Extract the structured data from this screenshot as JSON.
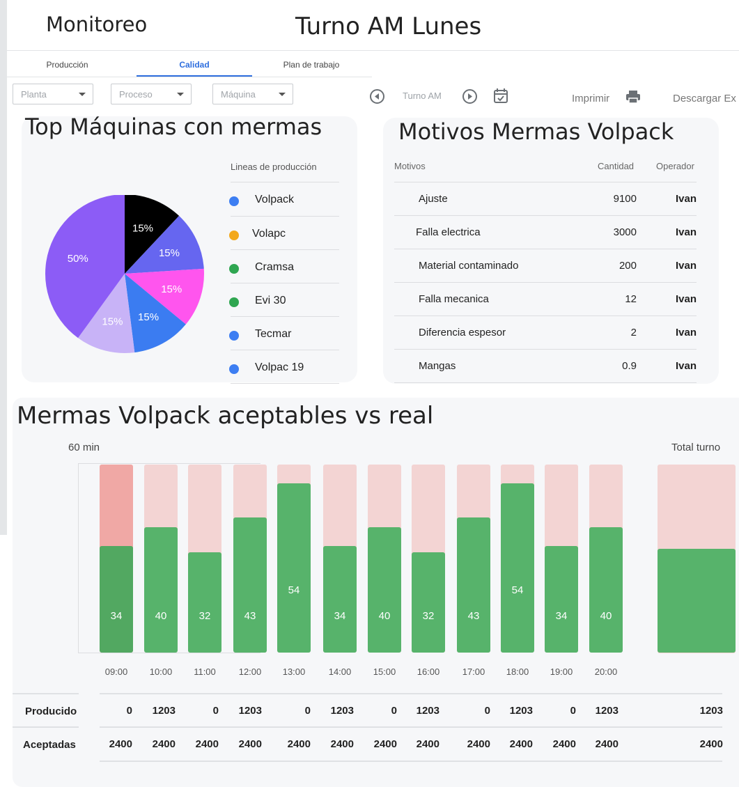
{
  "header": {
    "app_title": "Monitoreo",
    "shift_title": "Turno AM Lunes"
  },
  "tabs": [
    {
      "label": "Producción",
      "active": false
    },
    {
      "label": "Calidad",
      "active": true
    },
    {
      "label": "Plan de trabajo",
      "active": false
    }
  ],
  "filters": {
    "planta": "Planta",
    "proceso": "Proceso",
    "maquina": "Máquina"
  },
  "shift_nav": {
    "label": "Turno AM",
    "prev_icon": "circle-left-icon",
    "next_icon": "circle-right-icon",
    "calendar_icon": "calendar-check-icon"
  },
  "actions": {
    "print_label": "Imprimir",
    "print_icon": "printer-icon",
    "download_label": "Descargar Ex"
  },
  "top_machines": {
    "title": "Top Máquinas con mermas",
    "legend_title": "Lineas de producción",
    "legend": [
      {
        "label": "Volpack",
        "color": "#3d7ef2"
      },
      {
        "label": "Volapc",
        "color": "#f3a81b"
      },
      {
        "label": "Cramsa",
        "color": "#2fa651"
      },
      {
        "label": "Evi 30",
        "color": "#2fa651"
      },
      {
        "label": "Tecmar",
        "color": "#3d7ef2"
      },
      {
        "label": "Volpac 19",
        "color": "#3d7ef2"
      }
    ]
  },
  "reasons": {
    "title": "Motivos Mermas Volpack",
    "col_motivos": "Motivos",
    "col_cantidad": "Cantidad",
    "col_operador": "Operador",
    "rows": [
      {
        "motivo": "Ajuste",
        "cantidad": "9100",
        "operador": "Ivan"
      },
      {
        "motivo": "Falla electrica",
        "cantidad": "3000",
        "operador": "Ivan"
      },
      {
        "motivo": "Material contaminado",
        "cantidad": "200",
        "operador": "Ivan"
      },
      {
        "motivo": "Falla mecanica",
        "cantidad": "12",
        "operador": "Ivan"
      },
      {
        "motivo": "Diferencia espesor",
        "cantidad": "2",
        "operador": "Ivan"
      },
      {
        "motivo": "Mangas",
        "cantidad": "0.9",
        "operador": "Ivan"
      }
    ]
  },
  "bars_section": {
    "title": "Mermas Volpack aceptables vs real",
    "unit_label": "60 min",
    "total_label": "Total turno",
    "row_producido": "Producido",
    "row_aceptadas": "Aceptadas",
    "producido": [
      "0",
      "1203",
      "0",
      "1203",
      "0",
      "1203",
      "0",
      "1203",
      "0",
      "1203",
      "0",
      "1203"
    ],
    "aceptadas": [
      "2400",
      "2400",
      "2400",
      "2400",
      "2400",
      "2400",
      "2400",
      "2400",
      "2400",
      "2400",
      "2400",
      "2400"
    ],
    "total_producido": "1203",
    "total_aceptadas": "2400"
  },
  "chart_data": [
    {
      "type": "pie",
      "title": "Top Máquinas con mermas",
      "slices": [
        {
          "label": "15%",
          "value": 15,
          "color": "#000000"
        },
        {
          "label": "15%",
          "value": 15,
          "color": "#6666f0"
        },
        {
          "label": "15%",
          "value": 15,
          "color": "#ff55ee"
        },
        {
          "label": "15%",
          "value": 15,
          "color": "#3b7cf1"
        },
        {
          "label": "15%",
          "value": 15,
          "color": "#c8b3f7"
        },
        {
          "label": "50%",
          "value": 50,
          "color": "#8c5cf6"
        }
      ]
    },
    {
      "type": "bar",
      "title": "Mermas Volpack aceptables vs real",
      "categories": [
        "09:00",
        "10:00",
        "11:00",
        "12:00",
        "13:00",
        "14:00",
        "15:00",
        "16:00",
        "17:00",
        "18:00",
        "19:00",
        "20:00"
      ],
      "values": [
        34,
        40,
        32,
        43,
        54,
        34,
        40,
        32,
        43,
        54,
        34,
        40
      ],
      "ylim": [
        0,
        60
      ],
      "total_fill_fraction": 0.55,
      "colors": {
        "real": "#57b36b",
        "acceptable": "#f3d4d3",
        "highlight": "#f0a8a5"
      }
    }
  ]
}
